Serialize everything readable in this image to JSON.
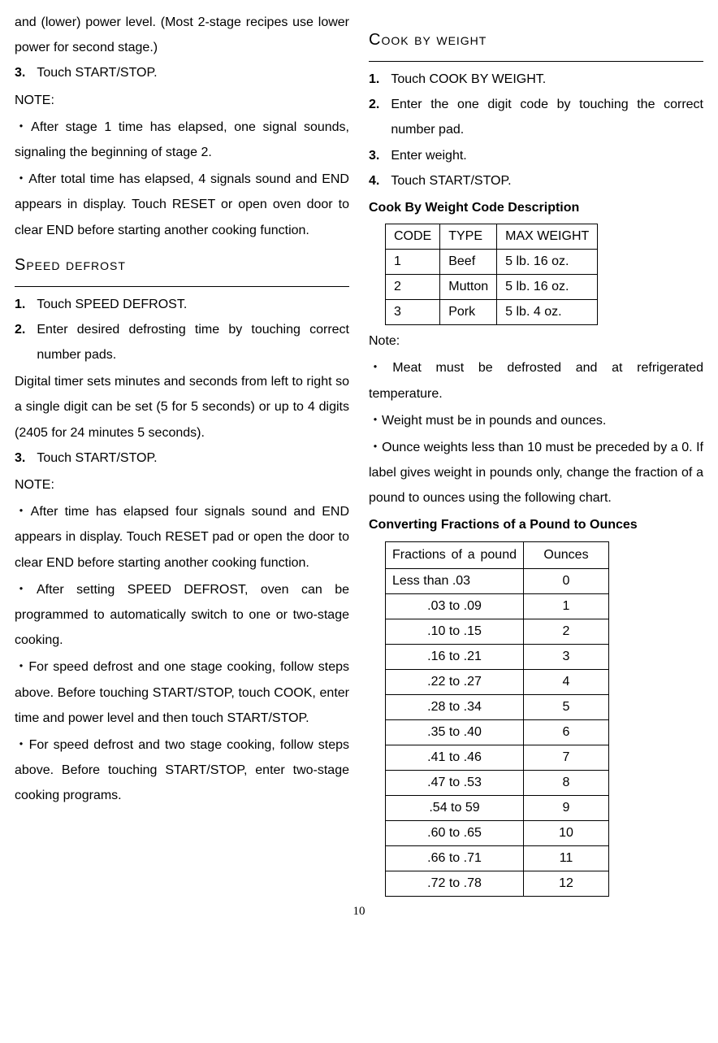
{
  "left": {
    "intro_para": "and (lower) power level. (Most 2-stage recipes use lower power for second stage.)",
    "step3_num": "3.",
    "step3_txt": "Touch START/STOP.",
    "note_label": "NOTE:",
    "note1": "・After stage 1 time has elapsed, one signal sounds, signaling the beginning of stage 2.",
    "note2": " ・After total time has elapsed, 4 signals sound and END appears in display. Touch RESET or open oven door to clear END before starting another cooking function.",
    "speed_title": "Speed defrost",
    "sd_step1_num": "1.",
    "sd_step1_txt": "Touch SPEED DEFROST.",
    "sd_step2_num": "2.",
    "sd_step2_txt": "Enter desired defrosting time by touching correct number pads.",
    "sd_para": "Digital timer sets minutes and seconds from left to right so a single digit can be set (5 for 5 seconds) or up to 4 digits (2405 for 24 minutes 5 seconds).",
    "sd_step3_num": "3.",
    "sd_step3_txt": "Touch START/STOP.",
    "sd_note_label": "NOTE:",
    "sd_note1": "・After time has elapsed four signals sound and END appears in display. Touch RESET pad or open the door to clear END before starting another cooking function.",
    "sd_note2": "・After setting SPEED DEFROST, oven can be programmed to automatically switch to one or two-stage cooking.",
    "sd_note3": "・For speed defrost and one stage cooking, follow steps above. Before touching START/STOP, touch COOK, enter time and power level and then touch START/STOP.",
    "sd_note4": "・For speed defrost and two stage cooking, follow steps above. Before touching START/STOP, enter two-stage cooking programs."
  },
  "right": {
    "cbw_title": "Cook by weight",
    "cbw_step1_num": "1.",
    "cbw_step1_txt": "Touch COOK BY WEIGHT.",
    "cbw_step2_num": "2.",
    "cbw_step2_txt": "Enter the one digit code by touching the correct number pad.",
    "cbw_step3_num": "3.",
    "cbw_step3_txt": "Enter weight.",
    "cbw_step4_num": "4.",
    "cbw_step4_txt": "Touch START/STOP.",
    "code_desc_title": "Cook By Weight Code Description",
    "codes": {
      "head": [
        "CODE",
        "TYPE",
        "MAX WEIGHT"
      ],
      "rows": [
        [
          "1",
          "Beef",
          "5 lb. 16 oz."
        ],
        [
          "2",
          "Mutton",
          "5 lb. 16 oz."
        ],
        [
          "3",
          "Pork",
          "5 lb. 4 oz."
        ]
      ]
    },
    "note_label": "Note:",
    "note1": "・Meat must be defrosted and at refrigerated temperature.",
    "note2": "・Weight must be in pounds and ounces.",
    "note3": "・Ounce weights less than 10 must be preceded by a 0. If label gives weight in pounds only, change the fraction of a pound to ounces using the following chart.",
    "convert_title": "Converting Fractions of a Pound to Ounces",
    "convert": {
      "head": [
        "Fractions of a pound",
        "Ounces"
      ],
      "rows": [
        {
          "f": "Less than .03",
          "o": "0",
          "align": "left"
        },
        {
          "f": ".03 to .09",
          "o": "1"
        },
        {
          "f": ".10 to .15",
          "o": "2"
        },
        {
          "f": ".16 to .21",
          "o": "3"
        },
        {
          "f": ".22 to .27",
          "o": "4"
        },
        {
          "f": ".28 to .34",
          "o": "5"
        },
        {
          "f": ".35 to .40",
          "o": "6"
        },
        {
          "f": ".41 to .46",
          "o": "7"
        },
        {
          "f": ".47 to .53",
          "o": "8"
        },
        {
          "f": ".54 to 59",
          "o": "9"
        },
        {
          "f": ".60 to .65",
          "o": "10"
        },
        {
          "f": ".66 to .71",
          "o": "11"
        },
        {
          "f": ".72 to .78",
          "o": "12"
        }
      ]
    }
  },
  "page_number": "10"
}
